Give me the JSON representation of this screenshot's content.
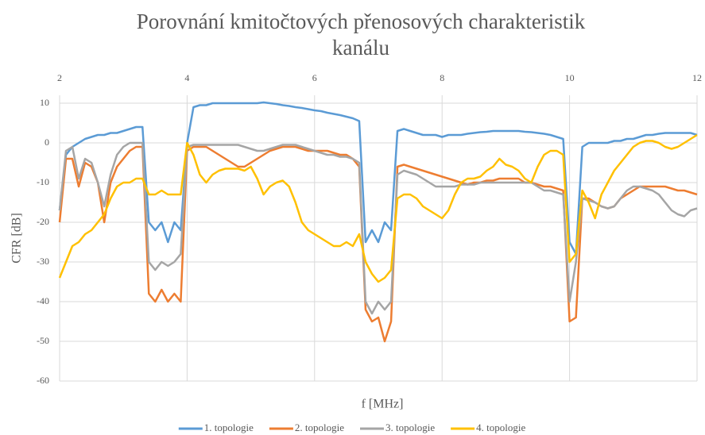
{
  "chart_data": {
    "type": "line",
    "title": "Porovnání kmitočtových přenosových charakteristik kanálu",
    "xlabel": "f [MHz]",
    "ylabel": "CFR [dB]",
    "xlim": [
      2,
      12
    ],
    "xticks": [
      2,
      4,
      6,
      8,
      10,
      12
    ],
    "ylim": [
      -60,
      12
    ],
    "yticks": [
      10,
      0,
      -10,
      -20,
      -30,
      -40,
      -50,
      -60
    ],
    "grid": true,
    "legend": "bottom",
    "x": [
      2,
      2.1,
      2.2,
      2.3,
      2.4,
      2.5,
      2.6,
      2.7,
      2.8,
      2.9,
      3,
      3.1,
      3.2,
      3.3,
      3.4,
      3.5,
      3.6,
      3.7,
      3.8,
      3.9,
      4,
      4.1,
      4.2,
      4.3,
      4.4,
      4.5,
      4.6,
      4.7,
      4.8,
      4.9,
      5,
      5.1,
      5.2,
      5.3,
      5.4,
      5.5,
      5.6,
      5.7,
      5.8,
      5.9,
      6,
      6.1,
      6.2,
      6.3,
      6.4,
      6.5,
      6.6,
      6.7,
      6.8,
      6.9,
      7,
      7.1,
      7.2,
      7.3,
      7.4,
      7.5,
      7.6,
      7.7,
      7.8,
      7.9,
      8,
      8.1,
      8.2,
      8.3,
      8.4,
      8.5,
      8.6,
      8.7,
      8.8,
      8.9,
      9,
      9.1,
      9.2,
      9.3,
      9.4,
      9.5,
      9.6,
      9.7,
      9.8,
      9.9,
      10,
      10.1,
      10.2,
      10.3,
      10.4,
      10.5,
      10.6,
      10.7,
      10.8,
      10.9,
      11,
      11.1,
      11.2,
      11.3,
      11.4,
      11.5,
      11.6,
      11.7,
      11.8,
      11.9,
      12
    ],
    "series": [
      {
        "name": "1. topologie",
        "color": "#5b9bd5",
        "values": [
          -17,
          -3,
          -1,
          0,
          1,
          1.5,
          2,
          2,
          2.5,
          2.5,
          3,
          3.5,
          4,
          4,
          -20,
          -22,
          -20,
          -25,
          -20,
          -22,
          0,
          9,
          9.5,
          9.5,
          10,
          10,
          10,
          10,
          10,
          10,
          10,
          10,
          10.2,
          10,
          9.8,
          9.5,
          9.3,
          9,
          8.8,
          8.5,
          8.2,
          8,
          7.6,
          7.3,
          7,
          6.6,
          6.2,
          5.5,
          -25,
          -22,
          -25,
          -20,
          -22,
          3,
          3.5,
          3,
          2.5,
          2,
          2,
          2,
          1.5,
          2,
          2,
          2,
          2.3,
          2.5,
          2.7,
          2.8,
          3,
          3,
          3,
          3,
          3,
          2.8,
          2.7,
          2.5,
          2.3,
          2,
          1.5,
          1,
          -25,
          -28,
          -1,
          0,
          0,
          0,
          0,
          0.5,
          0.5,
          1,
          1,
          1.5,
          2,
          2,
          2.3,
          2.5,
          2.5,
          2.5,
          2.5,
          2.5,
          2
        ]
      },
      {
        "name": "2. topologie",
        "color": "#ed7d31",
        "values": [
          -20,
          -4,
          -4,
          -11,
          -5,
          -6,
          -10,
          -20,
          -10,
          -6,
          -4,
          -2,
          -1,
          -1,
          -38,
          -40,
          -37,
          -40,
          -38,
          -40,
          -2,
          -1,
          -1,
          -1,
          -2,
          -3,
          -4,
          -5,
          -6,
          -6,
          -5,
          -4,
          -3,
          -2,
          -1.5,
          -1,
          -1,
          -1,
          -1.5,
          -2,
          -2,
          -2,
          -2,
          -2.5,
          -3,
          -3,
          -4,
          -6,
          -42,
          -45,
          -44,
          -50,
          -45,
          -6,
          -5.5,
          -6,
          -6.5,
          -7,
          -7.5,
          -8,
          -8.5,
          -9,
          -9.5,
          -10,
          -10.5,
          -10,
          -10,
          -9.5,
          -9.5,
          -9,
          -9,
          -9,
          -9,
          -10,
          -10,
          -10.5,
          -11,
          -11,
          -11.5,
          -12,
          -45,
          -44,
          -14,
          -14,
          -15,
          -16,
          -16.5,
          -16,
          -14,
          -13,
          -12,
          -11,
          -11,
          -11,
          -11,
          -11,
          -11.5,
          -12,
          -12,
          -12.5,
          -13
        ]
      },
      {
        "name": "3. topologie",
        "color": "#a5a5a5",
        "values": [
          -17,
          -2,
          -1,
          -9,
          -4,
          -5,
          -10,
          -16,
          -8,
          -3,
          -1,
          0,
          0,
          0,
          -30,
          -32,
          -30,
          -31,
          -30,
          -28,
          -1,
          -0.5,
          -0.5,
          -0.5,
          -0.5,
          -0.5,
          -0.5,
          -0.5,
          -0.5,
          -1,
          -1.5,
          -2,
          -2,
          -1.5,
          -1,
          -0.5,
          -0.5,
          -0.5,
          -1,
          -1.5,
          -2,
          -2.5,
          -3,
          -3,
          -3.5,
          -3.5,
          -4,
          -5,
          -40,
          -43,
          -40,
          -42,
          -40,
          -8,
          -7,
          -7.5,
          -8,
          -9,
          -10,
          -11,
          -11,
          -11,
          -11,
          -10.5,
          -10.5,
          -10.5,
          -10,
          -10,
          -10,
          -10,
          -10,
          -10,
          -10,
          -10,
          -10,
          -11,
          -12,
          -12,
          -12.5,
          -13,
          -40,
          -30,
          -14,
          -14.5,
          -15,
          -16,
          -16.5,
          -16,
          -14,
          -12,
          -11,
          -11,
          -11.5,
          -12,
          -13,
          -15,
          -17,
          -18,
          -18.5,
          -17,
          -16.5
        ]
      },
      {
        "name": "4. topologie",
        "color": "#ffc000",
        "values": [
          -34,
          -30,
          -26,
          -25,
          -23,
          -22,
          -20,
          -18,
          -14,
          -11,
          -10,
          -10,
          -9,
          -9,
          -13,
          -13,
          -12,
          -13,
          -13,
          -13,
          0,
          -3,
          -8,
          -10,
          -8,
          -7,
          -6.5,
          -6.5,
          -6.5,
          -7,
          -6,
          -9,
          -13,
          -11,
          -10,
          -9.5,
          -11,
          -15,
          -20,
          -22,
          -23,
          -24,
          -25,
          -26,
          -26,
          -25,
          -26,
          -23,
          -30,
          -33,
          -35,
          -34,
          -32,
          -14,
          -13,
          -13,
          -14,
          -16,
          -17,
          -18,
          -19,
          -17,
          -13,
          -10,
          -9,
          -9,
          -8.5,
          -7,
          -6,
          -4,
          -5.5,
          -6,
          -7,
          -9,
          -10,
          -6,
          -3,
          -2,
          -2,
          -3,
          -30,
          -28,
          -12,
          -15,
          -19,
          -13,
          -10,
          -7,
          -5,
          -3,
          -1,
          0,
          0.5,
          0.5,
          0,
          -1,
          -1.5,
          -1,
          0,
          1,
          2
        ]
      }
    ]
  }
}
